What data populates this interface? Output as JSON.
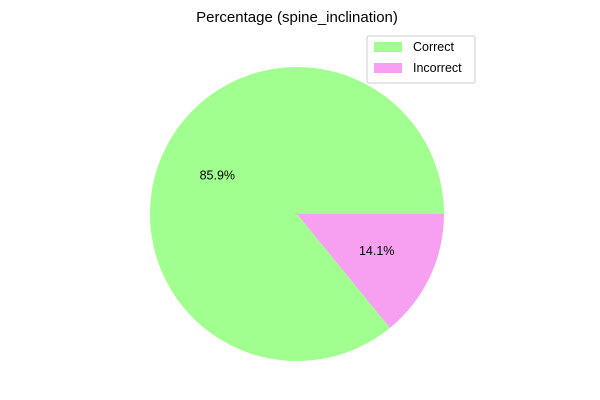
{
  "chart_data": {
    "type": "pie",
    "title": "Percentage (spine_inclination)",
    "slices": [
      {
        "label": "Correct",
        "value": 85.9,
        "display": "85.9%",
        "color": "#a0ff8f"
      },
      {
        "label": "Incorrect",
        "value": 14.1,
        "display": "14.1%",
        "color": "#f7a0f2"
      }
    ],
    "start_angle_deg": 0,
    "direction": "counterclockwise",
    "legend_position": "top-right"
  }
}
